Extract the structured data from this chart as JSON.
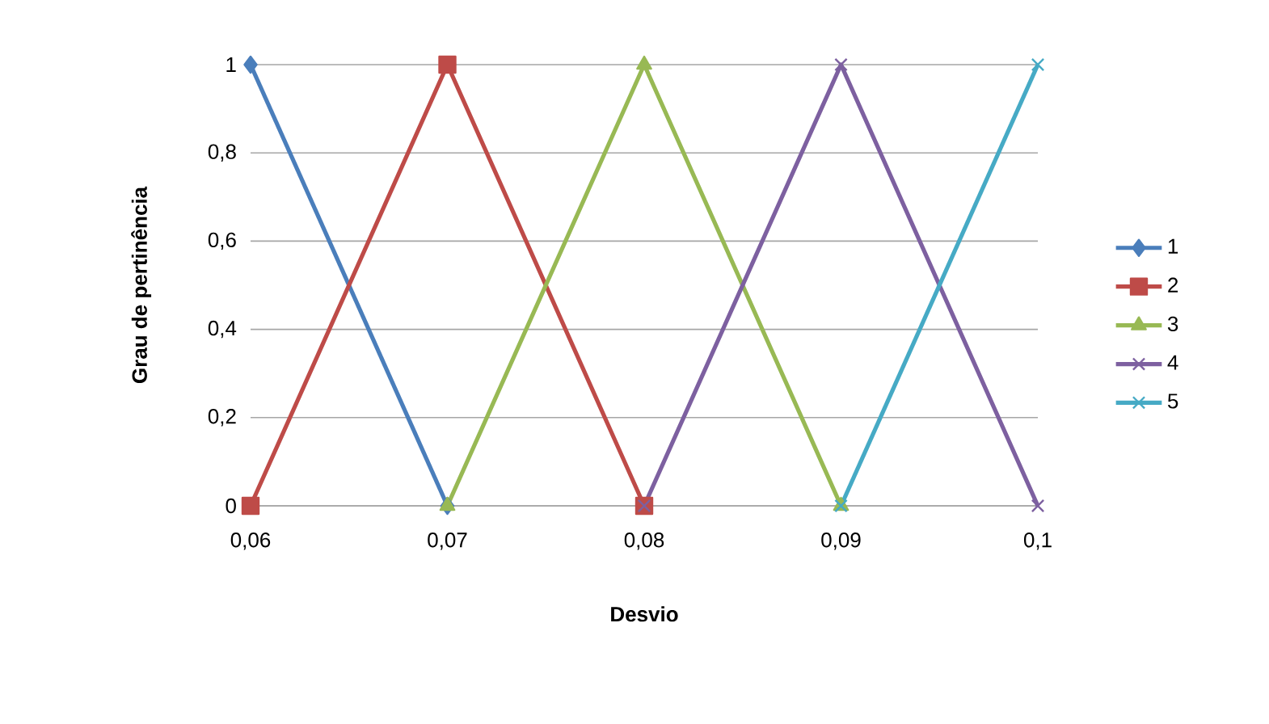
{
  "chart_data": {
    "type": "line",
    "xlabel": "Desvio",
    "ylabel": "Grau de pertinência",
    "xlim": [
      0.06,
      0.1
    ],
    "xticks": [
      {
        "value": 0.06,
        "label": "0,06"
      },
      {
        "value": 0.07,
        "label": "0,07"
      },
      {
        "value": 0.08,
        "label": "0,08"
      },
      {
        "value": 0.09,
        "label": "0,09"
      },
      {
        "value": 0.1,
        "label": "0,1"
      }
    ],
    "ylim": [
      0,
      1
    ],
    "yticks": [
      0,
      {
        "value": 0.2,
        "label": "0,2"
      },
      {
        "value": 0.4,
        "label": "0,4"
      },
      {
        "value": 0.6,
        "label": "0,6"
      },
      {
        "value": 0.8,
        "label": "0,8"
      },
      1
    ],
    "grid": "y",
    "legend": "right",
    "line_style": "solid",
    "series": [
      {
        "name": "1",
        "color": "#4a7ebb",
        "marker": "diamond",
        "x": [
          0.06,
          0.07
        ],
        "values": [
          1,
          0
        ]
      },
      {
        "name": "2",
        "color": "#be4b48",
        "marker": "square",
        "x": [
          0.06,
          0.07,
          0.08
        ],
        "values": [
          0,
          1,
          0
        ]
      },
      {
        "name": "3",
        "color": "#98b954",
        "marker": "triangle",
        "x": [
          0.07,
          0.08,
          0.09
        ],
        "values": [
          0,
          1,
          0
        ]
      },
      {
        "name": "4",
        "color": "#7d60a0",
        "marker": "cross",
        "x": [
          0.08,
          0.09,
          0.1
        ],
        "values": [
          0,
          1,
          0
        ]
      },
      {
        "name": "5",
        "color": "#46aac5",
        "marker": "cross",
        "x": [
          0.09,
          0.1
        ],
        "values": [
          0,
          1
        ]
      }
    ]
  }
}
